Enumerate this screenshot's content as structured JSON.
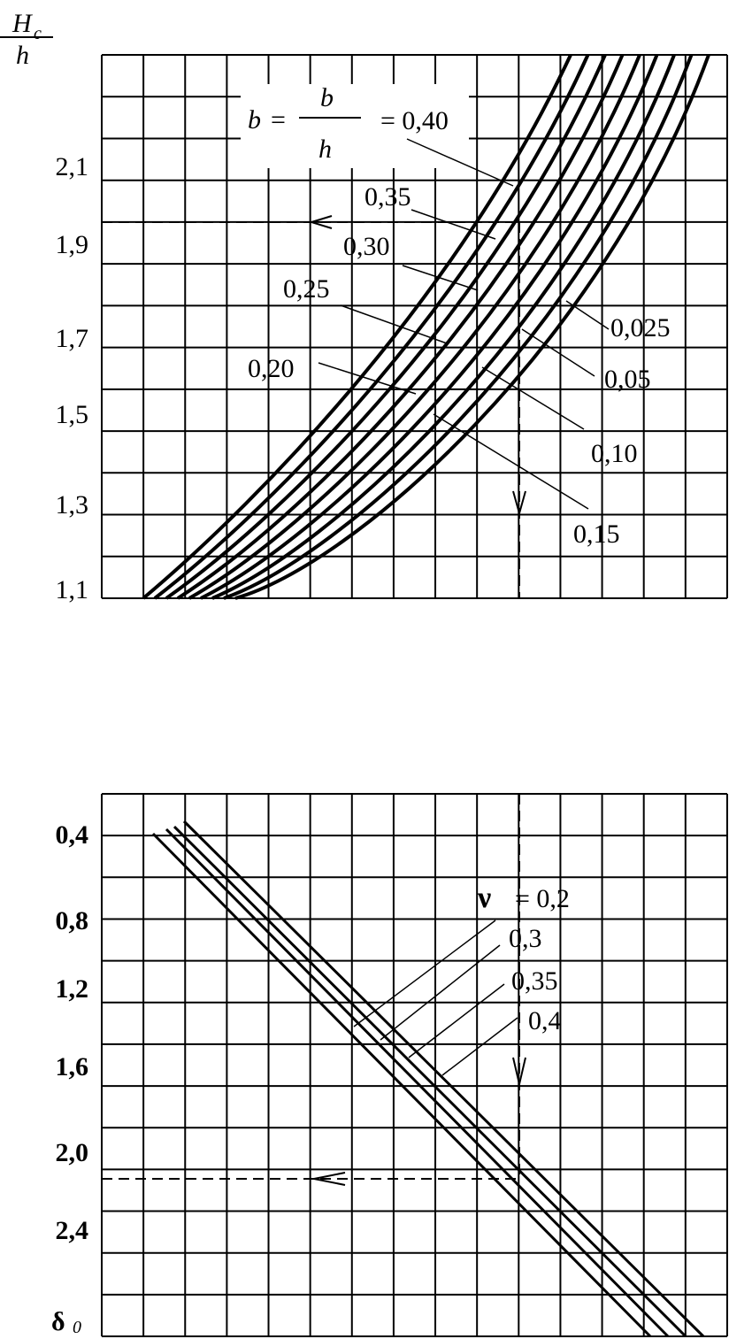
{
  "top_chart": {
    "y_axis_label": {
      "symbol": "H",
      "subscript": "c",
      "denominator": "h"
    },
    "yticks": [
      "2,1",
      "1,9",
      "1,7",
      "1,5",
      "1,3",
      "1,1"
    ],
    "parameter_label": {
      "symbol": "b",
      "equals": "=",
      "numerator": "b",
      "denominator": "h"
    },
    "curve_labels": [
      "= 0,40",
      "0,35",
      "0,30",
      "0,25",
      "0,20",
      "0,15",
      "0,10",
      "0,05",
      "0,025"
    ]
  },
  "bottom_chart": {
    "yticks": [
      "0,4",
      "0,8",
      "1,2",
      "1,6",
      "2,0",
      "2,4"
    ],
    "y_axis_label": {
      "symbol": "δ",
      "subscript": "0"
    },
    "parameter_symbol": "ν",
    "curve_labels": [
      "= 0,2",
      "0,3",
      "0,35",
      "0,4"
    ]
  }
}
